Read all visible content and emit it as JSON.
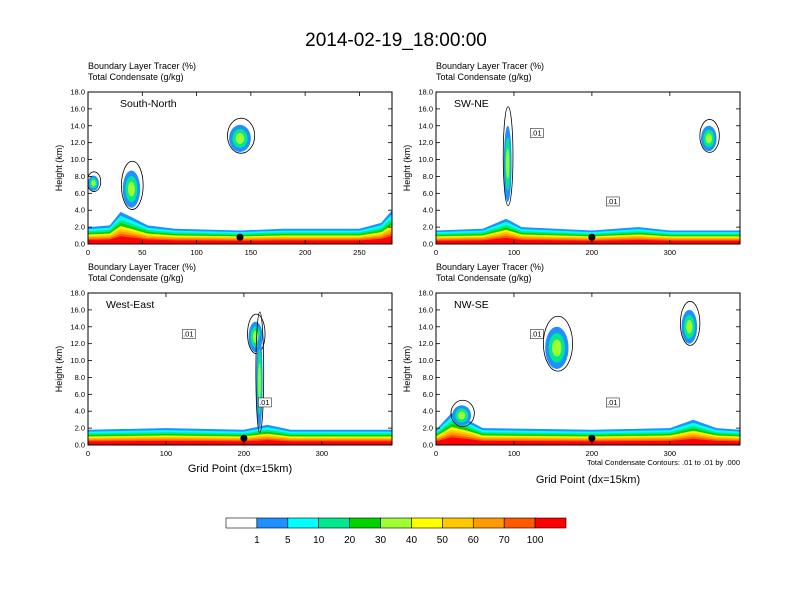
{
  "chart_data": {
    "type": "heatmap",
    "title": "2014-02-19_18:00:00",
    "field_label": "Boundary Layer Tracer   (%)",
    "contour_label": "Total Condensate   (g/kg)",
    "ylabel": "Height (km)",
    "xlabel": "Grid Point (dx=15km)",
    "contour_note": "Total Condensate Contours: .01 to .01 by .000",
    "colorbar": {
      "labels": [
        "1",
        "5",
        "10",
        "20",
        "30",
        "40",
        "50",
        "60",
        "70",
        "100"
      ],
      "colors": [
        "#ffffff",
        "#1e90ff",
        "#00ffff",
        "#00e890",
        "#00d400",
        "#a0ff30",
        "#ffff00",
        "#ffc800",
        "#ff9a00",
        "#ff5a00",
        "#ff0000"
      ]
    },
    "panels": [
      {
        "name": "South-North",
        "ylim": [
          0,
          18
        ],
        "yticks": [
          "0.0",
          "2.0",
          "4.0",
          "6.0",
          "8.0",
          "10.0",
          "12.0",
          "14.0",
          "16.0",
          "18.0"
        ],
        "xlim": [
          0,
          280
        ],
        "xticks": [
          0,
          50,
          100,
          150,
          200,
          250
        ],
        "show_xlabel": false,
        "marker_x": 140,
        "contour_labels": [],
        "tracer_profile": [
          [
            0,
            2.0
          ],
          [
            20,
            2.2
          ],
          [
            30,
            3.8
          ],
          [
            40,
            3.2
          ],
          [
            55,
            2.2
          ],
          [
            80,
            1.8
          ],
          [
            140,
            1.6
          ],
          [
            180,
            1.8
          ],
          [
            220,
            1.8
          ],
          [
            250,
            1.8
          ],
          [
            270,
            2.5
          ],
          [
            280,
            4.0
          ]
        ],
        "upper_blobs": [
          {
            "x": 140,
            "y": 12.5,
            "rx": 10,
            "ry": 1.6
          },
          {
            "x": 5,
            "y": 7.2,
            "rx": 5,
            "ry": 0.9
          },
          {
            "x": 40,
            "y": 6.5,
            "rx": 8,
            "ry": 2.2
          }
        ]
      },
      {
        "name": "SW-NE",
        "ylim": [
          0,
          18
        ],
        "yticks": [
          "0.0",
          "2.0",
          "4.0",
          "6.0",
          "8.0",
          "10.0",
          "12.0",
          "14.0",
          "16.0",
          "18.0"
        ],
        "xlim": [
          0,
          390
        ],
        "xticks": [
          0,
          100,
          200,
          300
        ],
        "show_xlabel": false,
        "marker_x": 200,
        "contour_labels": [
          ".01",
          ".01"
        ],
        "tracer_profile": [
          [
            0,
            1.6
          ],
          [
            60,
            1.8
          ],
          [
            90,
            3.0
          ],
          [
            110,
            2.0
          ],
          [
            200,
            1.6
          ],
          [
            260,
            2.0
          ],
          [
            300,
            1.6
          ],
          [
            390,
            1.6
          ]
        ],
        "upper_blobs": [
          {
            "x": 350,
            "y": 12.5,
            "rx": 10,
            "ry": 1.5
          },
          {
            "x": 92,
            "y": 9.5,
            "rx": 5,
            "ry": 4.5
          }
        ]
      },
      {
        "name": "West-East",
        "ylim": [
          0,
          18
        ],
        "yticks": [
          "0.0",
          "2.0",
          "4.0",
          "6.0",
          "8.0",
          "10.0",
          "12.0",
          "14.0",
          "16.0",
          "18.0"
        ],
        "xlim": [
          0,
          390
        ],
        "xticks": [
          0,
          100,
          200,
          300
        ],
        "show_xlabel": true,
        "marker_x": 200,
        "contour_labels": [
          ".01",
          ".01"
        ],
        "tracer_profile": [
          [
            0,
            1.8
          ],
          [
            100,
            2.0
          ],
          [
            200,
            1.8
          ],
          [
            230,
            2.4
          ],
          [
            260,
            1.8
          ],
          [
            390,
            1.8
          ]
        ],
        "upper_blobs": [
          {
            "x": 215,
            "y": 12.8,
            "rx": 9,
            "ry": 1.8
          },
          {
            "x": 220,
            "y": 7.5,
            "rx": 4,
            "ry": 5.5
          }
        ]
      },
      {
        "name": "NW-SE",
        "ylim": [
          0,
          18
        ],
        "yticks": [
          "0.0",
          "2.0",
          "4.0",
          "6.0",
          "8.0",
          "10.0",
          "12.0",
          "14.0",
          "16.0",
          "18.0"
        ],
        "xlim": [
          0,
          390
        ],
        "xticks": [
          0,
          100,
          200,
          300
        ],
        "show_xlabel": true,
        "marker_x": 200,
        "contour_labels": [
          ".01",
          ".01"
        ],
        "tracer_profile": [
          [
            0,
            1.8
          ],
          [
            20,
            3.8
          ],
          [
            40,
            3.0
          ],
          [
            60,
            2.0
          ],
          [
            200,
            1.8
          ],
          [
            300,
            2.0
          ],
          [
            330,
            3.0
          ],
          [
            360,
            2.0
          ],
          [
            390,
            1.8
          ]
        ],
        "upper_blobs": [
          {
            "x": 155,
            "y": 11.5,
            "rx": 15,
            "ry": 2.5
          },
          {
            "x": 325,
            "y": 14.0,
            "rx": 10,
            "ry": 2.0
          },
          {
            "x": 33,
            "y": 3.5,
            "rx": 12,
            "ry": 1.2
          }
        ]
      }
    ]
  }
}
